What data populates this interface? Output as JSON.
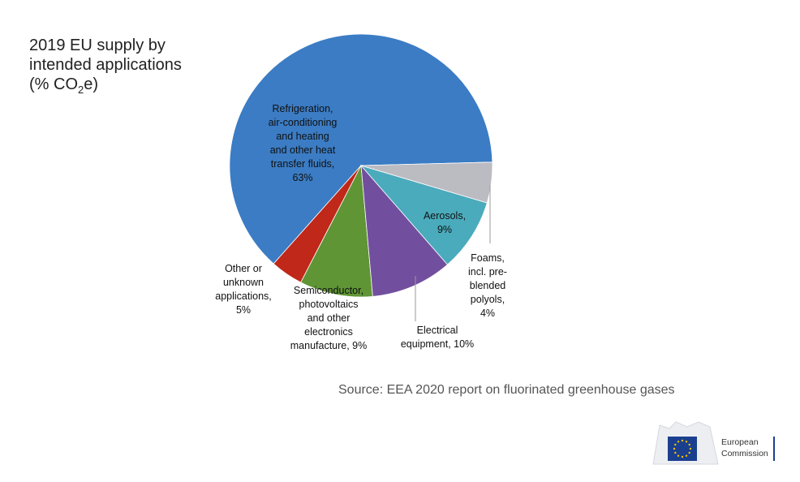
{
  "title": {
    "line1": "2019 EU supply by",
    "line2": "intended applications",
    "line3_prefix": "(% CO",
    "line3_sub": "2",
    "line3_suffix": "e)"
  },
  "source": "Source: EEA 2020 report on fluorinated greenhouse gases",
  "logo": {
    "line1": "European",
    "line2": "Commission",
    "flag_color": "#1b3f8f",
    "star_color": "#f2c300"
  },
  "chart_data": {
    "type": "pie",
    "unit": "% CO2e",
    "slices": [
      {
        "label": [
          "Refrigeration,",
          "air-conditioning",
          "and heating",
          "and other heat",
          "transfer fluids,",
          "63%"
        ],
        "value": 63,
        "color": "#3b7cc4"
      },
      {
        "label": [
          "Foams,",
          "incl. pre-",
          "blended",
          "polyols,",
          "4%"
        ],
        "value": 4,
        "color": "#c0281a"
      },
      {
        "label": [
          "Aerosols,",
          "9%"
        ],
        "value": 9,
        "color": "#5f9535"
      },
      {
        "label": [
          "Electrical",
          "equipment, 10%"
        ],
        "value": 10,
        "color": "#724f9e"
      },
      {
        "label": [
          "Semiconductor,",
          "photovoltaics",
          "and other",
          "electronics",
          "manufacture, 9%"
        ],
        "value": 9,
        "color": "#4aabbc"
      },
      {
        "label": [
          "Other or",
          "unknown",
          "applications,",
          "5%"
        ],
        "value": 5,
        "color": "#bbbbc2"
      }
    ]
  }
}
